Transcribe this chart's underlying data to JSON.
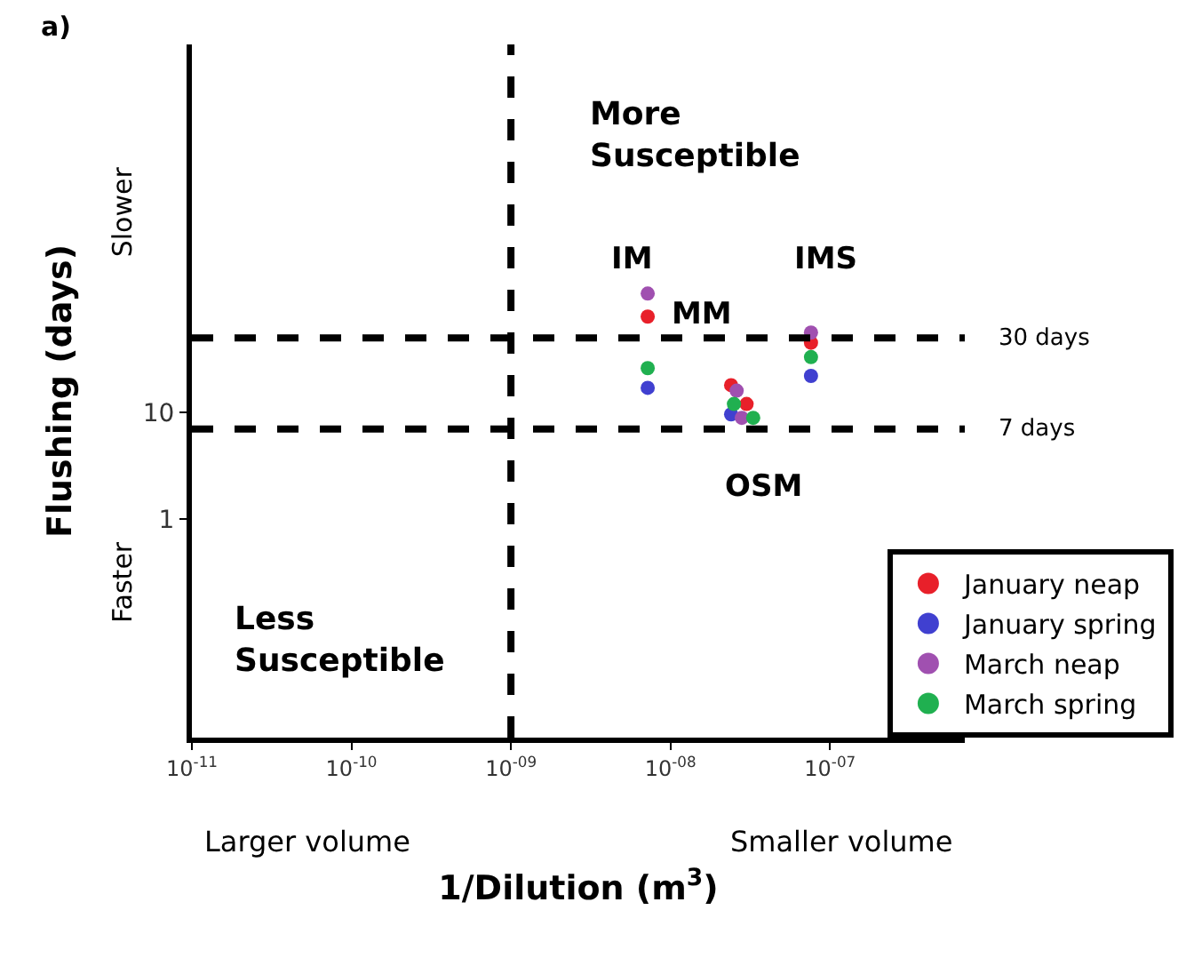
{
  "chart_data": {
    "type": "scatter",
    "xlabel": "1/Dilution (m$^{3}$)",
    "ylabel": "Flushing (days)",
    "log": "xy",
    "legend": "bottom right",
    "marker": "circle",
    "xlim": [
      1e-11,
      7e-07
    ],
    "ylim": [
      0.009,
      28000
    ],
    "xticks": [
      {
        "value": 1e-11,
        "label": "10$^{-11}$"
      },
      {
        "value": 1e-10,
        "label": "10$^{-10}$"
      },
      {
        "value": 1e-09,
        "label": "10$^{-09}$"
      },
      {
        "value": 1e-08,
        "label": "10$^{-08}$"
      },
      {
        "value": 1e-07,
        "label": "10$^{-07}$"
      }
    ],
    "yticks": [
      1,
      10
    ],
    "series": [
      {
        "name": "January neap",
        "color": "#e8202a",
        "x": [
          7.2e-09,
          2.4e-08,
          3e-08,
          7.6e-08
        ],
        "values": [
          79,
          18,
          12,
          45
        ]
      },
      {
        "name": "January spring",
        "color": "#4040d0",
        "x": [
          7.2e-09,
          2.4e-08,
          7.6e-08
        ],
        "values": [
          17,
          9.6,
          22
        ]
      },
      {
        "name": "March neap",
        "color": "#a050b0",
        "x": [
          7.2e-09,
          2.6e-08,
          2.8e-08,
          7.6e-08
        ],
        "values": [
          130,
          16,
          8.9,
          56
        ]
      },
      {
        "name": "March spring",
        "color": "#20b050",
        "x": [
          7.2e-09,
          2.5e-08,
          3.3e-08,
          7.6e-08
        ],
        "values": [
          26,
          12,
          8.9,
          33
        ]
      }
    ],
    "ref_lines": [
      {
        "axis": "x",
        "value": 1e-09,
        "label": null,
        "color": "#000000",
        "line_style": "dashed"
      },
      {
        "axis": "y",
        "value": 50,
        "label": "30 days",
        "color": "#000000",
        "line_style": "dashed"
      },
      {
        "axis": "y",
        "value": 7,
        "label": "7 days",
        "color": "#000000",
        "line_style": "dashed"
      }
    ],
    "annotations": [
      "IM",
      "MM",
      "IMS",
      "OSM",
      "a)",
      "More\nSusceptible",
      "Less\nSusceptible",
      "Slower",
      "Faster",
      "Larger volume",
      "Smaller volume"
    ]
  }
}
